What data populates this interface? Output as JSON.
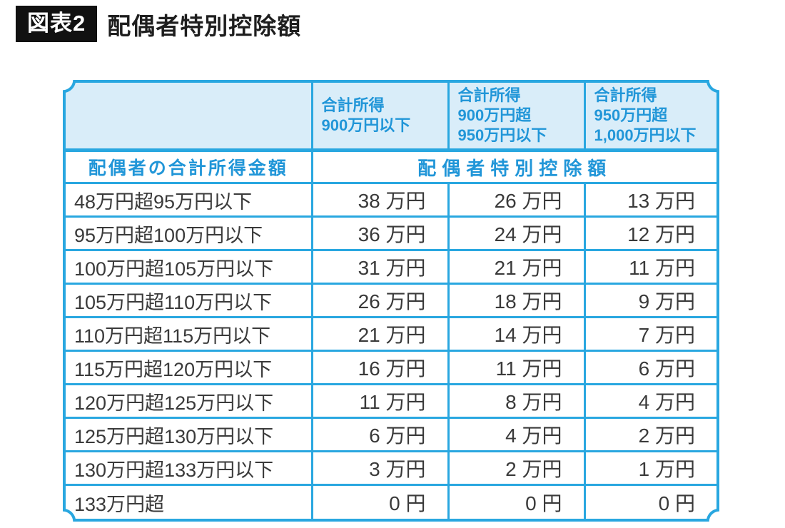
{
  "title": {
    "badge": "図表2",
    "text": "配偶者特別控除額"
  },
  "chart_data": {
    "type": "table",
    "title": "配偶者特別控除額",
    "row_axis_title": "配偶者の合計所得金額",
    "value_axis_title": "配偶者特別控除額",
    "income_band_headers": [
      "合計所得\n900万円以下",
      "合計所得\n900万円超\n950万円以下",
      "合計所得\n950万円超\n1,000万円以下"
    ],
    "rows": [
      {
        "range": "48万円超95万円以下",
        "values": [
          "38 万円",
          "26 万円",
          "13 万円"
        ]
      },
      {
        "range": "95万円超100万円以下",
        "values": [
          "36 万円",
          "24 万円",
          "12 万円"
        ]
      },
      {
        "range": "100万円超105万円以下",
        "values": [
          "31 万円",
          "21 万円",
          "11 万円"
        ]
      },
      {
        "range": "105万円超110万円以下",
        "values": [
          "26 万円",
          "18 万円",
          "9 万円"
        ]
      },
      {
        "range": "110万円超115万円以下",
        "values": [
          "21 万円",
          "14 万円",
          "7 万円"
        ]
      },
      {
        "range": "115万円超120万円以下",
        "values": [
          "16 万円",
          "11 万円",
          "6 万円"
        ]
      },
      {
        "range": "120万円超125万円以下",
        "values": [
          "11 万円",
          "8 万円",
          "4 万円"
        ]
      },
      {
        "range": "125万円超130万円以下",
        "values": [
          "6 万円",
          "4 万円",
          "2 万円"
        ]
      },
      {
        "range": "130万円超133万円以下",
        "values": [
          "3 万円",
          "2 万円",
          "1 万円"
        ]
      },
      {
        "range": "133万円超",
        "values": [
          "0 円",
          "0 円",
          "0 円"
        ]
      }
    ]
  },
  "colors": {
    "border_blue": "#29a7e0",
    "header_bg": "#d9edf9",
    "header_text": "#2196d8",
    "body_text": "#3a3a3a",
    "badge_bg": "#111111"
  }
}
